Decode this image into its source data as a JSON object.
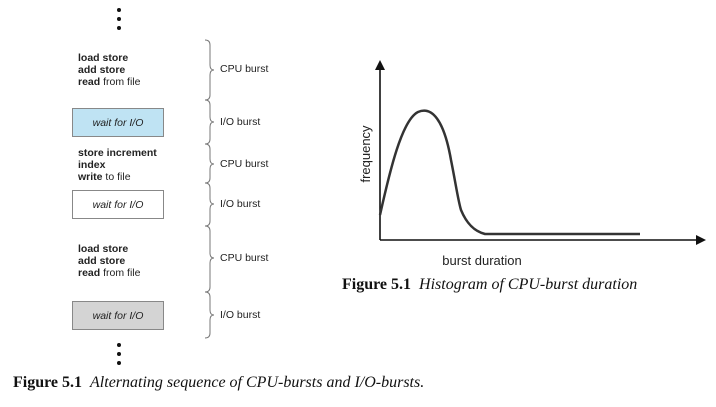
{
  "sequence": {
    "blocks": [
      {
        "type": "code",
        "lines": [
          {
            "bold": "load store",
            "rest": ""
          },
          {
            "bold": "add store",
            "rest": ""
          },
          {
            "bold": "read",
            "rest": " from file"
          }
        ],
        "burst": "CPU burst"
      },
      {
        "type": "wait",
        "label": "wait for I/O",
        "fill": "#bfe3f3",
        "burst": "I/O burst"
      },
      {
        "type": "code",
        "lines": [
          {
            "bold": "store increment",
            "rest": ""
          },
          {
            "bold": "index",
            "rest": ""
          },
          {
            "bold": "write",
            "rest": " to file"
          }
        ],
        "burst": "CPU burst"
      },
      {
        "type": "wait",
        "label": "wait for I/O",
        "fill": "#ffffff",
        "burst": "I/O burst"
      },
      {
        "type": "code",
        "lines": [
          {
            "bold": "load store",
            "rest": ""
          },
          {
            "bold": "add store",
            "rest": ""
          },
          {
            "bold": "read",
            "rest": " from file"
          }
        ],
        "burst": "CPU burst"
      },
      {
        "type": "wait",
        "label": "wait for I/O",
        "fill": "#d4d4d4",
        "burst": "I/O burst"
      }
    ]
  },
  "histogram": {
    "ylabel": "frequency",
    "xlabel": "burst duration",
    "caption_number": "Figure 5.1",
    "caption_text": "Histogram of CPU-burst duration"
  },
  "caption_main": {
    "number": "Figure 5.1",
    "text": "Alternating sequence of CPU-bursts and I/O-bursts."
  }
}
